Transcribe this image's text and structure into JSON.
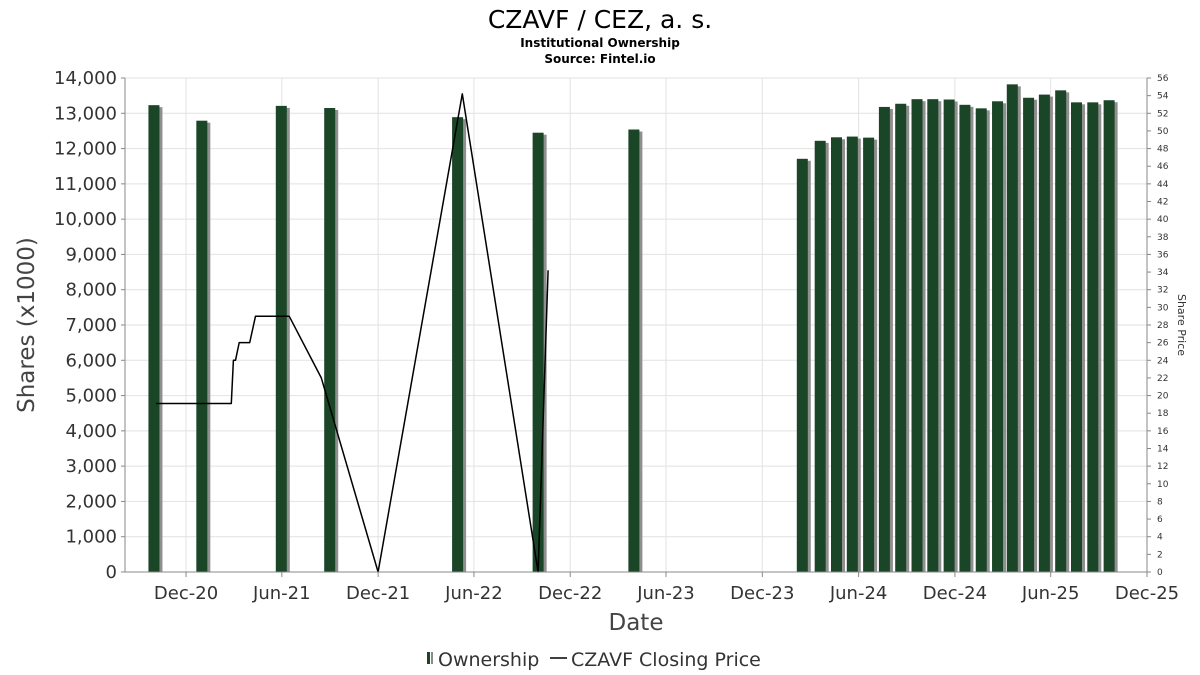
{
  "chart_data": {
    "type": "bar",
    "title": "CZAVF / CEZ, a. s.",
    "subtitle": "Institutional Ownership",
    "source": "Source: Fintel.io",
    "xlabel": "Date",
    "ylabel": "Shares (x1000)",
    "y2label": "Share Price",
    "ylim": [
      0,
      14000
    ],
    "y2lim": [
      0,
      56
    ],
    "x_range": [
      "2020-08-07",
      "2025-12-01"
    ],
    "grid": true,
    "legend_position": "bottom-center",
    "yticks": [
      "0",
      "1,000",
      "2,000",
      "3,000",
      "4,000",
      "5,000",
      "6,000",
      "7,000",
      "8,000",
      "9,000",
      "10,000",
      "11,000",
      "12,000",
      "13,000",
      "14,000"
    ],
    "y2ticks": [
      "0",
      "2",
      "4",
      "6",
      "8",
      "10",
      "12",
      "14",
      "16",
      "18",
      "20",
      "22",
      "24",
      "26",
      "28",
      "30",
      "32",
      "34",
      "36",
      "38",
      "40",
      "42",
      "44",
      "46",
      "48",
      "50",
      "52",
      "54",
      "56"
    ],
    "xticks": [
      {
        "label": "Dec-20",
        "date": "2020-12-01"
      },
      {
        "label": "Jun-21",
        "date": "2021-06-01"
      },
      {
        "label": "Dec-21",
        "date": "2021-12-01"
      },
      {
        "label": "Jun-22",
        "date": "2022-06-01"
      },
      {
        "label": "Dec-22",
        "date": "2022-12-01"
      },
      {
        "label": "Jun-23",
        "date": "2023-06-01"
      },
      {
        "label": "Dec-23",
        "date": "2023-12-01"
      },
      {
        "label": "Jun-24",
        "date": "2024-06-01"
      },
      {
        "label": "Dec-24",
        "date": "2024-12-01"
      },
      {
        "label": "Jun-25",
        "date": "2025-06-01"
      },
      {
        "label": "Dec-25",
        "date": "2025-12-01"
      }
    ],
    "series": [
      {
        "name": "Ownership",
        "type": "bar",
        "axis": "left",
        "color": "#1a4526",
        "points": [
          {
            "x": "2020-10-01",
            "y": 13230
          },
          {
            "x": "2020-12-31",
            "y": 12790
          },
          {
            "x": "2021-05-31",
            "y": 13210
          },
          {
            "x": "2021-08-31",
            "y": 13150
          },
          {
            "x": "2022-05-01",
            "y": 12890
          },
          {
            "x": "2022-10-01",
            "y": 12450
          },
          {
            "x": "2023-04-01",
            "y": 12540
          },
          {
            "x": "2024-02-15",
            "y": 11710
          },
          {
            "x": "2024-03-20",
            "y": 12220
          },
          {
            "x": "2024-04-20",
            "y": 12320
          },
          {
            "x": "2024-05-20",
            "y": 12340
          },
          {
            "x": "2024-06-20",
            "y": 12310
          },
          {
            "x": "2024-07-20",
            "y": 13180
          },
          {
            "x": "2024-08-20",
            "y": 13270
          },
          {
            "x": "2024-09-20",
            "y": 13400
          },
          {
            "x": "2024-10-20",
            "y": 13400
          },
          {
            "x": "2024-11-20",
            "y": 13390
          },
          {
            "x": "2024-12-20",
            "y": 13240
          },
          {
            "x": "2025-01-20",
            "y": 13140
          },
          {
            "x": "2025-02-20",
            "y": 13340
          },
          {
            "x": "2025-03-20",
            "y": 13820
          },
          {
            "x": "2025-04-20",
            "y": 13440
          },
          {
            "x": "2025-05-20",
            "y": 13530
          },
          {
            "x": "2025-06-20",
            "y": 13650
          },
          {
            "x": "2025-07-20",
            "y": 13310
          },
          {
            "x": "2025-08-20",
            "y": 13310
          },
          {
            "x": "2025-09-20",
            "y": 13370
          }
        ]
      },
      {
        "name": "CZAVF Closing Price",
        "type": "line",
        "axis": "right",
        "color": "#000000",
        "points": [
          {
            "x": "2020-10-05",
            "y": 19.1
          },
          {
            "x": "2020-11-01",
            "y": 19.1
          },
          {
            "x": "2021-01-01",
            "y": 19.1
          },
          {
            "x": "2021-02-25",
            "y": 19.1
          },
          {
            "x": "2021-03-01",
            "y": 24.0
          },
          {
            "x": "2021-03-05",
            "y": 24.0
          },
          {
            "x": "2021-03-12",
            "y": 26.0
          },
          {
            "x": "2021-04-01",
            "y": 26.0
          },
          {
            "x": "2021-04-12",
            "y": 29.0
          },
          {
            "x": "2021-06-15",
            "y": 29.0
          },
          {
            "x": "2021-08-15",
            "y": 22.0
          },
          {
            "x": "2021-12-01",
            "y": 0.0
          },
          {
            "x": "2022-05-10",
            "y": 54.2
          },
          {
            "x": "2022-10-01",
            "y": 0.0
          },
          {
            "x": "2022-10-20",
            "y": 34.2
          }
        ]
      }
    ]
  },
  "legend": {
    "ownership_label": "Ownership",
    "price_label": "CZAVF Closing Price"
  }
}
